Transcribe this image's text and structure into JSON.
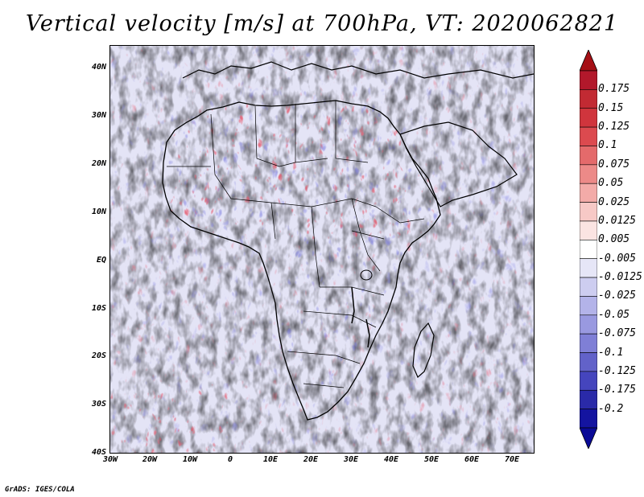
{
  "title": "Vertical velocity [m/s] at 700hPa, VT: 2020062821",
  "credit": "GrADS: IGES/COLA",
  "map": {
    "lat_labels": [
      "40N",
      "30N",
      "20N",
      "10N",
      "EQ",
      "10S",
      "20S",
      "30S",
      "40S"
    ],
    "lon_labels": [
      "30W",
      "20W",
      "10W",
      "0",
      "10E",
      "20E",
      "30E",
      "40E",
      "50E",
      "60E",
      "70E"
    ],
    "lat_range": [
      -40,
      45
    ],
    "lon_range": [
      -30,
      75
    ]
  },
  "colorbar": {
    "labels": [
      "0.175",
      "0.15",
      "0.125",
      "0.1",
      "0.075",
      "0.05",
      "0.025",
      "0.0125",
      "0.005",
      "-0.005",
      "-0.0125",
      "-0.025",
      "-0.05",
      "-0.075",
      "-0.1",
      "-0.125",
      "-0.175",
      "-0.2"
    ],
    "colors": [
      "#b2182b",
      "#c22a33",
      "#d0353d",
      "#dc4a4f",
      "#e46a6b",
      "#ec8a88",
      "#f3aba8",
      "#f7c9c6",
      "#fbe4e2",
      "#ffffff",
      "#e6e6f7",
      "#cdcdf0",
      "#b3b3e9",
      "#9999e0",
      "#7f7fd6",
      "#6262c9",
      "#4545bd",
      "#2a2aa8",
      "#1414a0"
    ],
    "top_arrow_color": "#a50f15",
    "bottom_arrow_color": "#0a0a96"
  },
  "chart_data": {
    "type": "heatmap",
    "title": "Vertical velocity [m/s] at 700hPa, VT: 2020062821",
    "variable": "Vertical velocity",
    "units": "m/s",
    "level": "700hPa",
    "valid_time": "2020062821",
    "x_axis": [
      "30W",
      "20W",
      "10W",
      "0",
      "10E",
      "20E",
      "30E",
      "40E",
      "50E",
      "60E",
      "70E"
    ],
    "y_axis": [
      "40N",
      "30N",
      "20N",
      "10N",
      "EQ",
      "10S",
      "20S",
      "30S",
      "40S"
    ],
    "levels": [
      -0.2,
      -0.175,
      -0.125,
      -0.1,
      -0.075,
      -0.05,
      -0.025,
      -0.0125,
      -0.005,
      0.005,
      0.0125,
      0.025,
      0.05,
      0.075,
      0.1,
      0.125,
      0.15,
      0.175
    ]
  }
}
